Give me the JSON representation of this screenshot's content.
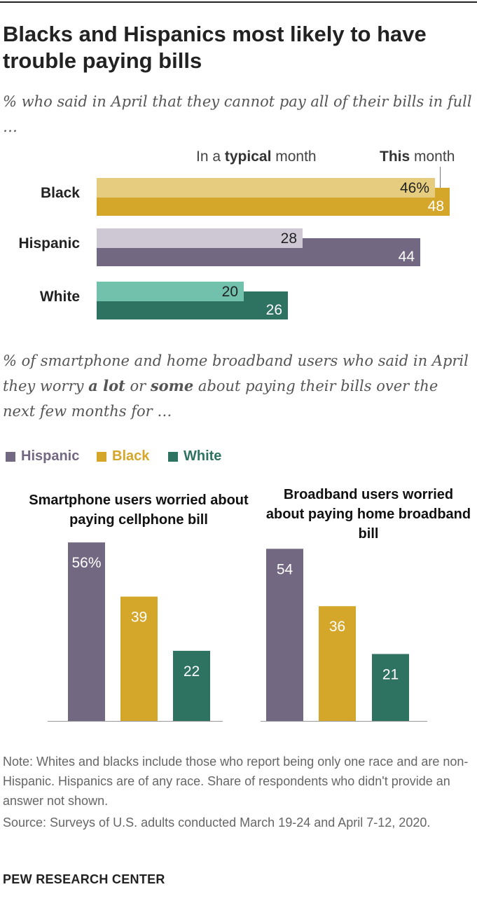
{
  "header": {
    "title": "Blacks and Hispanics most likely to have trouble paying bills",
    "subtitle1": "% who said in April that they cannot pay all of their bills in full …",
    "subtitle2_parts": [
      "% of smartphone and home broadband users who said in April they worry ",
      "a lot",
      " or ",
      "some",
      " about paying their bills over the next few months for …"
    ]
  },
  "legend_top": {
    "typical_pre": "In a ",
    "typical_bold": "typical",
    "typical_post": " month",
    "this_bold": "This",
    "this_post": " month"
  },
  "legend_bottom": [
    {
      "name": "Hispanic",
      "color": "#736882"
    },
    {
      "name": "Black",
      "color": "#d4a62a"
    },
    {
      "name": "White",
      "color": "#2e7262"
    }
  ],
  "colors": {
    "black_light": "#e6cc7f",
    "black_dark": "#d4a62a",
    "hispanic_light": "#cdc8d4",
    "hispanic_dark": "#736882",
    "white_light": "#72c1ad",
    "white_dark": "#2e7262"
  },
  "chart_data": [
    {
      "type": "bar",
      "orientation": "horizontal",
      "categories": [
        "Black",
        "Hispanic",
        "White"
      ],
      "series": [
        {
          "name": "In a typical month",
          "values": [
            46,
            28,
            20
          ]
        },
        {
          "name": "This month",
          "values": [
            48,
            44,
            26
          ]
        }
      ],
      "labels_typical": [
        "46%",
        "28",
        "20"
      ],
      "labels_this": [
        "48",
        "44",
        "26"
      ]
    },
    {
      "type": "bar",
      "title": "Smartphone users worried about paying cellphone bill",
      "categories": [
        "Hispanic",
        "Black",
        "White"
      ],
      "values": [
        56,
        39,
        22
      ],
      "labels": [
        "56%",
        "39",
        "22"
      ]
    },
    {
      "type": "bar",
      "title": "Broadband users worried about paying home broadband bill",
      "categories": [
        "Hispanic",
        "Black",
        "White"
      ],
      "values": [
        54,
        36,
        21
      ],
      "labels": [
        "54",
        "36",
        "21"
      ]
    }
  ],
  "footer": {
    "note": "Note: Whites and blacks include those who report being only one race and are non-Hispanic. Hispanics are of any race. Share of respondents who didn't provide an answer not shown.",
    "source": "Source: Surveys of U.S. adults conducted March 19-24 and April 7-12, 2020.",
    "brand": "PEW RESEARCH CENTER"
  }
}
